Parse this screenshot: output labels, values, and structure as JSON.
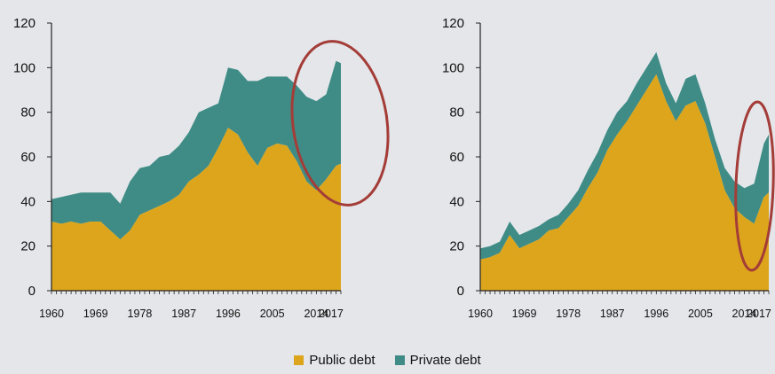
{
  "colors": {
    "public": "#dca51c",
    "private": "#3f8c86",
    "circle": "#a43c37",
    "axis": "#222222",
    "background": "#e4e6ea"
  },
  "legend": {
    "public_label": "Public debt",
    "private_label": "Private debt"
  },
  "chart_data": [
    {
      "type": "area",
      "stacked": true,
      "ylim": [
        0,
        120
      ],
      "yticks": [
        0,
        20,
        40,
        60,
        80,
        100,
        120
      ],
      "xlim": [
        1960,
        2019
      ],
      "xticks": [
        1960,
        1969,
        1978,
        1987,
        1996,
        2005,
        2014,
        2017
      ],
      "x": [
        1960,
        1962,
        1964,
        1966,
        1968,
        1970,
        1972,
        1974,
        1976,
        1978,
        1980,
        1982,
        1984,
        1986,
        1988,
        1990,
        1992,
        1994,
        1996,
        1998,
        2000,
        2002,
        2004,
        2006,
        2008,
        2010,
        2012,
        2014,
        2016,
        2018,
        2019
      ],
      "series": [
        {
          "name": "Public debt",
          "values": [
            31,
            30,
            31,
            30,
            31,
            31,
            27,
            23,
            27,
            34,
            36,
            38,
            40,
            43,
            49,
            52,
            56,
            64,
            73,
            70,
            62,
            56,
            64,
            66,
            65,
            58,
            49,
            45,
            50,
            56,
            57
          ]
        },
        {
          "name": "Private debt",
          "values": [
            10,
            12,
            12,
            14,
            13,
            13,
            17,
            16,
            22,
            21,
            20,
            22,
            21,
            22,
            22,
            28,
            26,
            20,
            27,
            29,
            32,
            38,
            32,
            30,
            31,
            34,
            38,
            40,
            38,
            47,
            45
          ]
        }
      ],
      "annotation": "red ellipse highlighting 2011-2019"
    },
    {
      "type": "area",
      "stacked": true,
      "ylim": [
        0,
        120
      ],
      "yticks": [
        0,
        20,
        40,
        60,
        80,
        100,
        120
      ],
      "xlim": [
        1960,
        2019
      ],
      "xticks": [
        1960,
        1969,
        1978,
        1987,
        1996,
        2005,
        2014,
        2017
      ],
      "x": [
        1960,
        1962,
        1964,
        1966,
        1968,
        1970,
        1972,
        1974,
        1976,
        1978,
        1980,
        1982,
        1984,
        1986,
        1988,
        1990,
        1992,
        1994,
        1996,
        1998,
        2000,
        2002,
        2004,
        2006,
        2008,
        2010,
        2012,
        2014,
        2016,
        2018,
        2019
      ],
      "series": [
        {
          "name": "Public debt",
          "values": [
            14,
            15,
            17,
            25,
            19,
            21,
            23,
            27,
            28,
            33,
            38,
            46,
            53,
            63,
            70,
            76,
            83,
            90,
            97,
            85,
            76,
            83,
            85,
            75,
            60,
            45,
            37,
            33,
            30,
            42,
            44
          ]
        },
        {
          "name": "Private debt",
          "values": [
            5,
            5,
            5,
            6,
            6,
            6,
            6,
            5,
            6,
            6,
            7,
            8,
            9,
            9,
            10,
            9,
            10,
            10,
            10,
            8,
            8,
            12,
            12,
            9,
            8,
            10,
            12,
            13,
            18,
            24,
            26
          ]
        }
      ],
      "annotation": "red ellipse highlighting 2013-2019"
    }
  ]
}
